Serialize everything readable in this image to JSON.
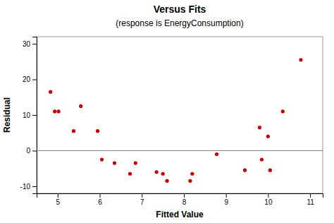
{
  "chart_data": {
    "type": "scatter",
    "title": "Versus Fits",
    "subtitle": "(response is EnergyConsumption)",
    "xlabel": "Fitted Value",
    "ylabel": "Residual",
    "x": [
      4.83,
      4.93,
      5.02,
      5.38,
      5.55,
      5.95,
      6.05,
      6.35,
      6.72,
      6.85,
      7.35,
      7.5,
      7.6,
      8.15,
      8.2,
      8.78,
      9.45,
      9.8,
      9.85,
      10.0,
      10.05,
      10.35,
      10.78
    ],
    "values": [
      16.5,
      11.0,
      11.0,
      5.5,
      12.5,
      5.5,
      -2.5,
      -3.5,
      -6.5,
      -3.5,
      -6.0,
      -6.5,
      -8.5,
      -8.5,
      -6.5,
      -1.0,
      -5.5,
      6.5,
      -2.5,
      4.0,
      -5.5,
      11.0,
      25.5
    ],
    "color": "#cc0000",
    "hline_y": 0,
    "xlim": [
      4.5,
      11.3
    ],
    "ylim": [
      -12,
      32
    ],
    "xticks": [
      5,
      6,
      7,
      8,
      9,
      10,
      11
    ],
    "yticks": [
      -10,
      0,
      10,
      20,
      30
    ],
    "grid": false
  }
}
